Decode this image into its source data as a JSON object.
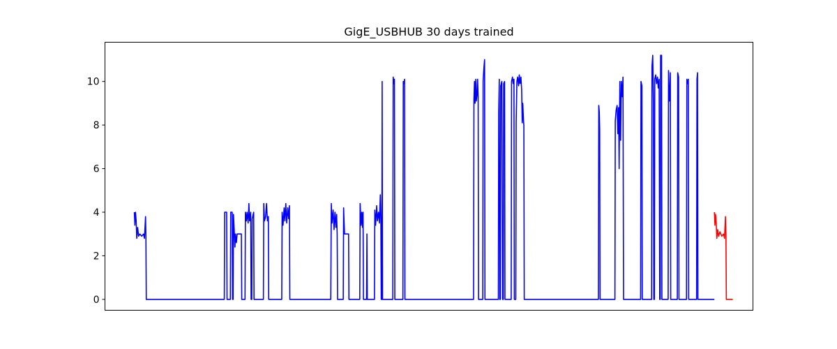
{
  "chart_data": {
    "type": "line",
    "title": "GigE_USBHUB 30 days trained",
    "xlabel": "",
    "ylabel": "",
    "x_ticks_visible": false,
    "ylim": [
      -0.5,
      11.8
    ],
    "xlim": [
      -3,
      350
    ],
    "y_ticks": [
      0,
      2,
      4,
      6,
      8,
      10
    ],
    "grid": false,
    "series": [
      {
        "color": "#0000ff",
        "points": [
          [
            13,
            4
          ],
          [
            13.3,
            3.4
          ],
          [
            13.6,
            4
          ],
          [
            14,
            3.6
          ],
          [
            14.3,
            2.8
          ],
          [
            14.8,
            3.3
          ],
          [
            15.3,
            2.9
          ],
          [
            16,
            3
          ],
          [
            17,
            2.9
          ],
          [
            18,
            3
          ],
          [
            18.5,
            2.8
          ],
          [
            19.1,
            3.8
          ],
          [
            19.3,
            2.9
          ],
          [
            19.5,
            0
          ],
          [
            62,
            0
          ],
          [
            62.2,
            4
          ],
          [
            63.3,
            4
          ],
          [
            63.5,
            0
          ],
          [
            65.3,
            0
          ],
          [
            65.5,
            4
          ],
          [
            66.3,
            4
          ],
          [
            66.5,
            0
          ],
          [
            66.8,
            0
          ],
          [
            67,
            3.9
          ],
          [
            67.4,
            3.2
          ],
          [
            67.8,
            2.4
          ],
          [
            68.1,
            3
          ],
          [
            68.6,
            2.6
          ],
          [
            69,
            3
          ],
          [
            71.3,
            3
          ],
          [
            71.5,
            0
          ],
          [
            73.3,
            0
          ],
          [
            73.5,
            4
          ],
          [
            74,
            3.6
          ],
          [
            74.4,
            4
          ],
          [
            75,
            3.5
          ],
          [
            75.4,
            4.4
          ],
          [
            75.8,
            3.6
          ],
          [
            76.4,
            4
          ],
          [
            76.6,
            0
          ],
          [
            77,
            0
          ],
          [
            77.2,
            3.7
          ],
          [
            78,
            4
          ],
          [
            78.2,
            0
          ],
          [
            83.3,
            0
          ],
          [
            83.5,
            4.4
          ],
          [
            83.9,
            3.6
          ],
          [
            84.5,
            3.8
          ],
          [
            85,
            4.4
          ],
          [
            85.5,
            3.6
          ],
          [
            86,
            3.8
          ],
          [
            86.2,
            0
          ],
          [
            93.3,
            0
          ],
          [
            93.5,
            4
          ],
          [
            94,
            3.4
          ],
          [
            94.6,
            4.2
          ],
          [
            95,
            3.6
          ],
          [
            95.5,
            4.4
          ],
          [
            96,
            3.5
          ],
          [
            96.6,
            4.2
          ],
          [
            97.1,
            3.7
          ],
          [
            97.5,
            4.3
          ],
          [
            97.7,
            0
          ],
          [
            120,
            0
          ],
          [
            120.3,
            4.4
          ],
          [
            120.7,
            3.5
          ],
          [
            121.3,
            4.1
          ],
          [
            121.8,
            3.2
          ],
          [
            122.3,
            4
          ],
          [
            122.8,
            3.3
          ],
          [
            123.2,
            3.9
          ],
          [
            123.5,
            3
          ],
          [
            123.7,
            0
          ],
          [
            126.8,
            0
          ],
          [
            127,
            4.2
          ],
          [
            127.5,
            3
          ],
          [
            129.7,
            3
          ],
          [
            129.9,
            0
          ],
          [
            135.8,
            0
          ],
          [
            136,
            4.4
          ],
          [
            136.5,
            3.4
          ],
          [
            136.9,
            4
          ],
          [
            137.3,
            3.3
          ],
          [
            137.6,
            4
          ],
          [
            137.8,
            0
          ],
          [
            139.5,
            0
          ],
          [
            139.7,
            3
          ],
          [
            139.9,
            0
          ],
          [
            143.8,
            0
          ],
          [
            144,
            4.1
          ],
          [
            144.4,
            3.4
          ],
          [
            145,
            4.3
          ],
          [
            145.4,
            3.6
          ],
          [
            146,
            4
          ],
          [
            146.5,
            3.5
          ],
          [
            147,
            4.8
          ],
          [
            147.3,
            3.6
          ],
          [
            147.5,
            0
          ],
          [
            147.8,
            0
          ],
          [
            148,
            10
          ],
          [
            148.2,
            0
          ],
          [
            153.8,
            0
          ],
          [
            154,
            10.2
          ],
          [
            154.4,
            9.9
          ],
          [
            154.7,
            10.1
          ],
          [
            154.9,
            0
          ],
          [
            159.3,
            0
          ],
          [
            159.5,
            10
          ],
          [
            159.9,
            9.9
          ],
          [
            160.2,
            10.1
          ],
          [
            160.4,
            0
          ],
          [
            197.8,
            0
          ],
          [
            198,
            9.2
          ],
          [
            198.3,
            10
          ],
          [
            198.6,
            9
          ],
          [
            199,
            10.1
          ],
          [
            199.3,
            9.1
          ],
          [
            199.7,
            9.4
          ],
          [
            200,
            10.1
          ],
          [
            200.3,
            9.3
          ],
          [
            200.5,
            0
          ],
          [
            202.8,
            0
          ],
          [
            203,
            10
          ],
          [
            203.4,
            10.6
          ],
          [
            203.8,
            11
          ],
          [
            204,
            0
          ],
          [
            211.3,
            0
          ],
          [
            211.5,
            8.6
          ],
          [
            211.8,
            10.1
          ],
          [
            212.1,
            0
          ],
          [
            212.4,
            0
          ],
          [
            212.6,
            9.8
          ],
          [
            213.2,
            10
          ],
          [
            213.6,
            0
          ],
          [
            214,
            0
          ],
          [
            214.2,
            9.9
          ],
          [
            214.7,
            10
          ],
          [
            214.9,
            0
          ],
          [
            218.3,
            0
          ],
          [
            218.5,
            10
          ],
          [
            219,
            10.2
          ],
          [
            219.4,
            9.9
          ],
          [
            219.8,
            10.1
          ],
          [
            220,
            0
          ],
          [
            220.8,
            0
          ],
          [
            221,
            8.1
          ],
          [
            221.4,
            10
          ],
          [
            221.8,
            10.2
          ],
          [
            222.3,
            9.8
          ],
          [
            222.7,
            10.3
          ],
          [
            223.1,
            9.9
          ],
          [
            223.6,
            10.2
          ],
          [
            224,
            9.6
          ],
          [
            224.3,
            8.1
          ],
          [
            224.6,
            9
          ],
          [
            225,
            8.2
          ],
          [
            225.2,
            8
          ],
          [
            225.4,
            0
          ],
          [
            265.8,
            0
          ],
          [
            266,
            8.9
          ],
          [
            266.3,
            8.6
          ],
          [
            266.5,
            7.8
          ],
          [
            266.7,
            0
          ],
          [
            274.8,
            0
          ],
          [
            275,
            8.2
          ],
          [
            275.5,
            8.7
          ],
          [
            276,
            8.9
          ],
          [
            276.4,
            7.6
          ],
          [
            276.8,
            8.8
          ],
          [
            277.1,
            6
          ],
          [
            277.5,
            10
          ],
          [
            277.9,
            7.3
          ],
          [
            278.3,
            10
          ],
          [
            278.8,
            9.3
          ],
          [
            279.2,
            10.2
          ],
          [
            279.5,
            0
          ],
          [
            288.8,
            0
          ],
          [
            289,
            10
          ],
          [
            289.5,
            9.8
          ],
          [
            289.7,
            0
          ],
          [
            294.8,
            0
          ],
          [
            295,
            10.7
          ],
          [
            295.4,
            11.2
          ],
          [
            295.8,
            9
          ],
          [
            296,
            0
          ],
          [
            296.3,
            0
          ],
          [
            296.5,
            10.1
          ],
          [
            297,
            10.3
          ],
          [
            297.5,
            9.9
          ],
          [
            298,
            10.2
          ],
          [
            298.4,
            9.7
          ],
          [
            298.9,
            10.1
          ],
          [
            299.2,
            0
          ],
          [
            299.5,
            0
          ],
          [
            299.7,
            11.2
          ],
          [
            300.2,
            11.2
          ],
          [
            300.4,
            0
          ],
          [
            303.8,
            0
          ],
          [
            304,
            10.5
          ],
          [
            304.4,
            9.1
          ],
          [
            304.7,
            9.5
          ],
          [
            305,
            10.4
          ],
          [
            305.2,
            0
          ],
          [
            308.8,
            0
          ],
          [
            309,
            10.4
          ],
          [
            309.5,
            10.2
          ],
          [
            309.7,
            0
          ],
          [
            313.8,
            0
          ],
          [
            314,
            10.1
          ],
          [
            314.5,
            9.9
          ],
          [
            314.8,
            10.1
          ],
          [
            315,
            0
          ],
          [
            319.3,
            0
          ],
          [
            319.5,
            10.1
          ],
          [
            319.8,
            10.4
          ],
          [
            320,
            0
          ],
          [
            329,
            0
          ]
        ]
      },
      {
        "color": "#ff0000",
        "points": [
          [
            329,
            4
          ],
          [
            329.3,
            3.4
          ],
          [
            329.6,
            3.9
          ],
          [
            330,
            3.5
          ],
          [
            330.3,
            2.8
          ],
          [
            330.8,
            3.2
          ],
          [
            331.3,
            2.9
          ],
          [
            332,
            3.1
          ],
          [
            333,
            2.9
          ],
          [
            334,
            3
          ],
          [
            334.5,
            2.8
          ],
          [
            335,
            3.8
          ],
          [
            335.3,
            2.9
          ],
          [
            335.5,
            0
          ],
          [
            339,
            0
          ]
        ]
      }
    ]
  }
}
